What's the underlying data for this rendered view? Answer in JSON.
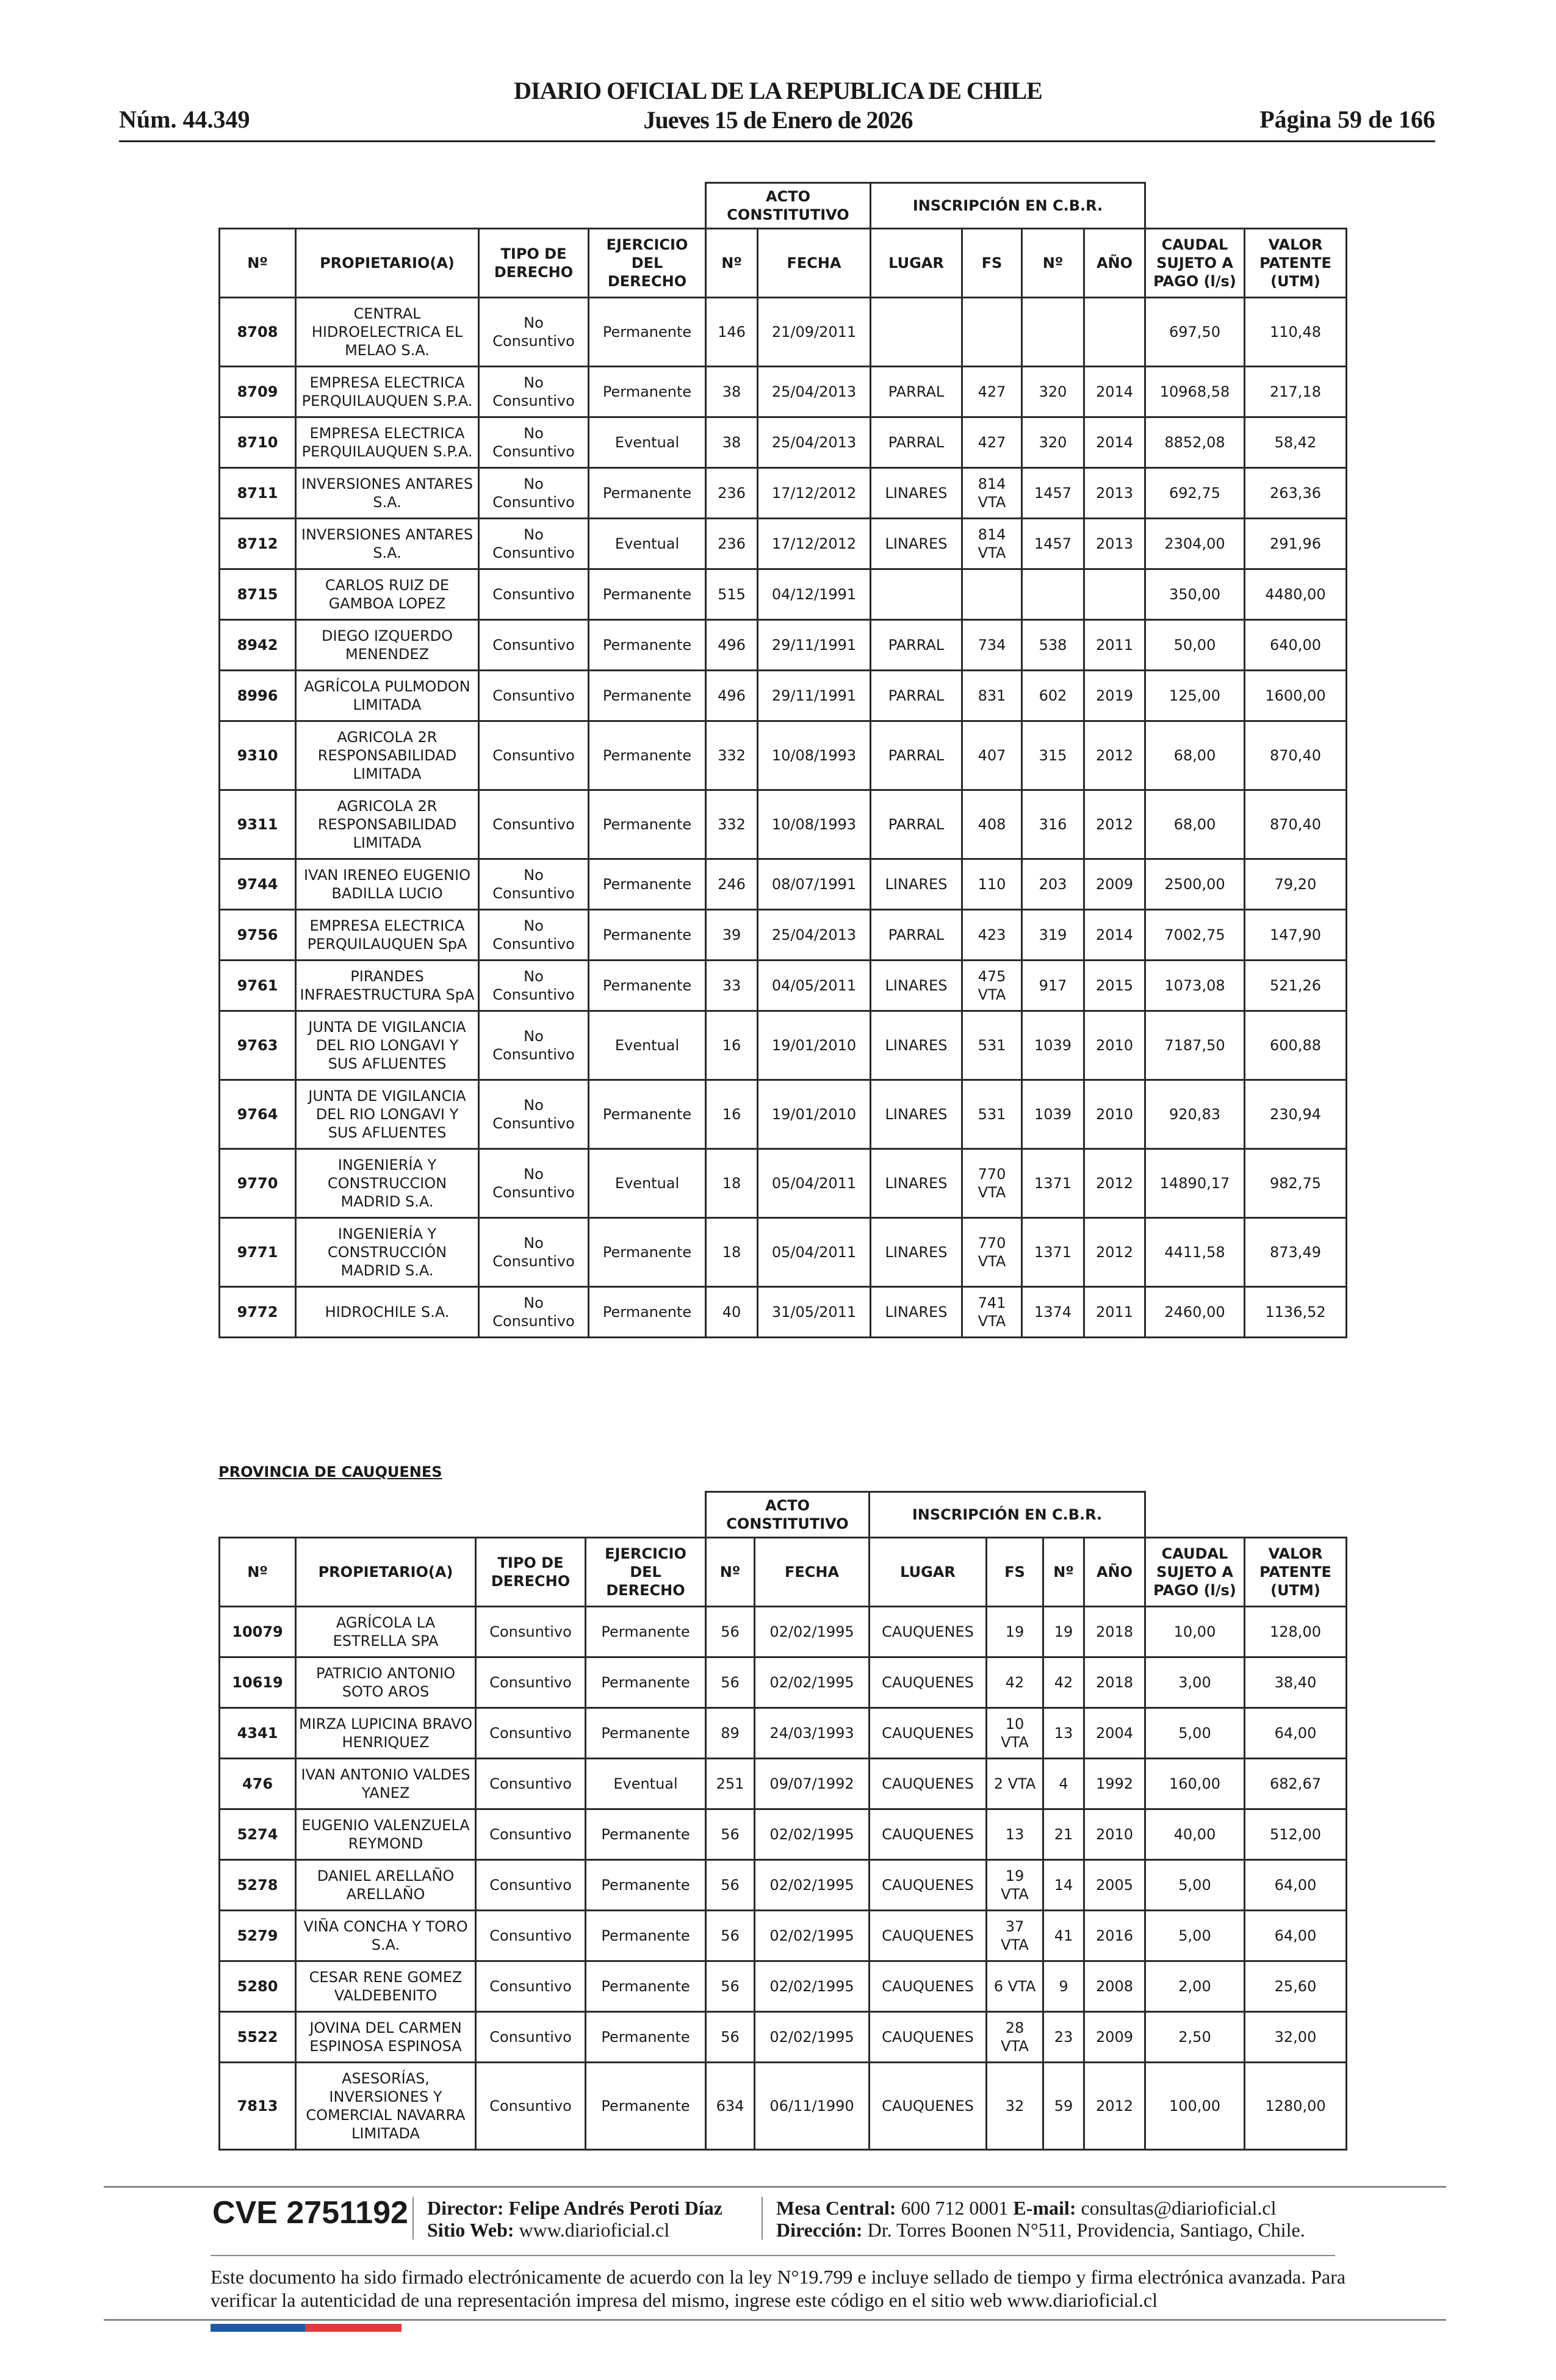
{
  "header": {
    "title_line1": "DIARIO OFICIAL DE LA REPUBLICA DE CHILE",
    "title_line2": "Jueves 15 de Enero de 2026",
    "issue_number": "Núm. 44.349",
    "page": "Página 59 de 166"
  },
  "columns": {
    "group_acto": "ACTO CONSTITUTIVO",
    "group_inscripcion": "INSCRIPCIÓN EN C.B.R.",
    "headers": [
      "Nº",
      "PROPIETARIO(A)",
      "TIPO DE DERECHO",
      "EJERCICIO DEL DERECHO",
      "Nº",
      "FECHA",
      "LUGAR",
      "FS",
      "Nº",
      "AÑO",
      "CAUDAL SUJETO A PAGO (l/s)",
      "VALOR PATENTE (UTM)"
    ]
  },
  "table1": {
    "rows": [
      [
        "8708",
        "CENTRAL HIDROELECTRICA EL MELAO S.A.",
        "No Consuntivo",
        "Permanente",
        "146",
        "21/09/2011",
        "",
        "",
        "",
        "",
        "697,50",
        "110,48"
      ],
      [
        "8709",
        "EMPRESA ELECTRICA PERQUILAUQUEN S.P.A.",
        "No Consuntivo",
        "Permanente",
        "38",
        "25/04/2013",
        "PARRAL",
        "427",
        "320",
        "2014",
        "10968,58",
        "217,18"
      ],
      [
        "8710",
        "EMPRESA ELECTRICA PERQUILAUQUEN S.P.A.",
        "No Consuntivo",
        "Eventual",
        "38",
        "25/04/2013",
        "PARRAL",
        "427",
        "320",
        "2014",
        "8852,08",
        "58,42"
      ],
      [
        "8711",
        "INVERSIONES ANTARES S.A.",
        "No Consuntivo",
        "Permanente",
        "236",
        "17/12/2012",
        "LINARES",
        "814 VTA",
        "1457",
        "2013",
        "692,75",
        "263,36"
      ],
      [
        "8712",
        "INVERSIONES ANTARES S.A.",
        "No Consuntivo",
        "Eventual",
        "236",
        "17/12/2012",
        "LINARES",
        "814 VTA",
        "1457",
        "2013",
        "2304,00",
        "291,96"
      ],
      [
        "8715",
        "CARLOS RUIZ DE GAMBOA LOPEZ",
        "Consuntivo",
        "Permanente",
        "515",
        "04/12/1991",
        "",
        "",
        "",
        "",
        "350,00",
        "4480,00"
      ],
      [
        "8942",
        "DIEGO IZQUERDO MENENDEZ",
        "Consuntivo",
        "Permanente",
        "496",
        "29/11/1991",
        "PARRAL",
        "734",
        "538",
        "2011",
        "50,00",
        "640,00"
      ],
      [
        "8996",
        "AGRÍCOLA PULMODON LIMITADA",
        "Consuntivo",
        "Permanente",
        "496",
        "29/11/1991",
        "PARRAL",
        "831",
        "602",
        "2019",
        "125,00",
        "1600,00"
      ],
      [
        "9310",
        "AGRICOLA 2R RESPONSABILIDAD LIMITADA",
        "Consuntivo",
        "Permanente",
        "332",
        "10/08/1993",
        "PARRAL",
        "407",
        "315",
        "2012",
        "68,00",
        "870,40"
      ],
      [
        "9311",
        "AGRICOLA 2R RESPONSABILIDAD LIMITADA",
        "Consuntivo",
        "Permanente",
        "332",
        "10/08/1993",
        "PARRAL",
        "408",
        "316",
        "2012",
        "68,00",
        "870,40"
      ],
      [
        "9744",
        "IVAN IRENEO EUGENIO BADILLA LUCIO",
        "No Consuntivo",
        "Permanente",
        "246",
        "08/07/1991",
        "LINARES",
        "110",
        "203",
        "2009",
        "2500,00",
        "79,20"
      ],
      [
        "9756",
        "EMPRESA ELECTRICA PERQUILAUQUEN SpA",
        "No Consuntivo",
        "Permanente",
        "39",
        "25/04/2013",
        "PARRAL",
        "423",
        "319",
        "2014",
        "7002,75",
        "147,90"
      ],
      [
        "9761",
        "PIRANDES INFRAESTRUCTURA SpA",
        "No Consuntivo",
        "Permanente",
        "33",
        "04/05/2011",
        "LINARES",
        "475 VTA",
        "917",
        "2015",
        "1073,08",
        "521,26"
      ],
      [
        "9763",
        "JUNTA DE VIGILANCIA DEL RIO LONGAVI Y SUS AFLUENTES",
        "No Consuntivo",
        "Eventual",
        "16",
        "19/01/2010",
        "LINARES",
        "531",
        "1039",
        "2010",
        "7187,50",
        "600,88"
      ],
      [
        "9764",
        "JUNTA DE VIGILANCIA DEL RIO LONGAVI Y SUS AFLUENTES",
        "No Consuntivo",
        "Permanente",
        "16",
        "19/01/2010",
        "LINARES",
        "531",
        "1039",
        "2010",
        "920,83",
        "230,94"
      ],
      [
        "9770",
        "INGENIERÍA Y CONSTRUCCION MADRID S.A.",
        "No Consuntivo",
        "Eventual",
        "18",
        "05/04/2011",
        "LINARES",
        "770 VTA",
        "1371",
        "2012",
        "14890,17",
        "982,75"
      ],
      [
        "9771",
        "INGENIERÍA Y CONSTRUCCIÓN MADRID S.A.",
        "No Consuntivo",
        "Permanente",
        "18",
        "05/04/2011",
        "LINARES",
        "770 VTA",
        "1371",
        "2012",
        "4411,58",
        "873,49"
      ],
      [
        "9772",
        "HIDROCHILE S.A.",
        "No Consuntivo",
        "Permanente",
        "40",
        "31/05/2011",
        "LINARES",
        "741 VTA",
        "1374",
        "2011",
        "2460,00",
        "1136,52"
      ]
    ]
  },
  "province_heading": "PROVINCIA DE CAUQUENES",
  "table2": {
    "rows": [
      [
        "10079",
        "AGRÍCOLA LA ESTRELLA SPA",
        "Consuntivo",
        "Permanente",
        "56",
        "02/02/1995",
        "CAUQUENES",
        "19",
        "19",
        "2018",
        "10,00",
        "128,00"
      ],
      [
        "10619",
        "PATRICIO ANTONIO SOTO AROS",
        "Consuntivo",
        "Permanente",
        "56",
        "02/02/1995",
        "CAUQUENES",
        "42",
        "42",
        "2018",
        "3,00",
        "38,40"
      ],
      [
        "4341",
        "MIRZA LUPICINA BRAVO HENRIQUEZ",
        "Consuntivo",
        "Permanente",
        "89",
        "24/03/1993",
        "CAUQUENES",
        "10 VTA",
        "13",
        "2004",
        "5,00",
        "64,00"
      ],
      [
        "476",
        "IVAN ANTONIO VALDES YANEZ",
        "Consuntivo",
        "Eventual",
        "251",
        "09/07/1992",
        "CAUQUENES",
        "2 VTA",
        "4",
        "1992",
        "160,00",
        "682,67"
      ],
      [
        "5274",
        "EUGENIO VALENZUELA REYMOND",
        "Consuntivo",
        "Permanente",
        "56",
        "02/02/1995",
        "CAUQUENES",
        "13",
        "21",
        "2010",
        "40,00",
        "512,00"
      ],
      [
        "5278",
        "DANIEL ARELLAÑO ARELLAÑO",
        "Consuntivo",
        "Permanente",
        "56",
        "02/02/1995",
        "CAUQUENES",
        "19 VTA",
        "14",
        "2005",
        "5,00",
        "64,00"
      ],
      [
        "5279",
        "VIÑA CONCHA Y TORO S.A.",
        "Consuntivo",
        "Permanente",
        "56",
        "02/02/1995",
        "CAUQUENES",
        "37 VTA",
        "41",
        "2016",
        "5,00",
        "64,00"
      ],
      [
        "5280",
        "CESAR RENE GOMEZ VALDEBENITO",
        "Consuntivo",
        "Permanente",
        "56",
        "02/02/1995",
        "CAUQUENES",
        "6 VTA",
        "9",
        "2008",
        "2,00",
        "25,60"
      ],
      [
        "5522",
        "JOVINA DEL CARMEN ESPINOSA ESPINOSA",
        "Consuntivo",
        "Permanente",
        "56",
        "02/02/1995",
        "CAUQUENES",
        "28 VTA",
        "23",
        "2009",
        "2,50",
        "32,00"
      ],
      [
        "7813",
        "ASESORÍAS, INVERSIONES Y COMERCIAL NAVARRA LIMITADA",
        "Consuntivo",
        "Permanente",
        "634",
        "06/11/1990",
        "CAUQUENES",
        "32",
        "59",
        "2012",
        "100,00",
        "1280,00"
      ]
    ]
  },
  "footer": {
    "cve": "CVE 2751192",
    "director_label": "Director:",
    "director_name": "Felipe Andrés Peroti Díaz",
    "web_label": "Sitio Web:",
    "web_value": "www.diarioficial.cl",
    "mesa_label": "Mesa Central:",
    "mesa_value": "600 712 0001",
    "email_label": "E-mail:",
    "email_value": "consultas@diarioficial.cl",
    "address_label": "Dirección:",
    "address_value": "Dr. Torres Boonen N°511, Providencia, Santiago, Chile.",
    "legal_text": "Este documento ha sido firmado electrónicamente de acuerdo con la ley N°19.799 e incluye sellado de tiempo y firma electrónica avanzada. Para verificar la autenticidad de una representación impresa del mismo, ingrese este código en el sitio web www.diarioficial.cl",
    "flag_colors": [
      "#1f5aa6",
      "#e03a3e"
    ]
  }
}
